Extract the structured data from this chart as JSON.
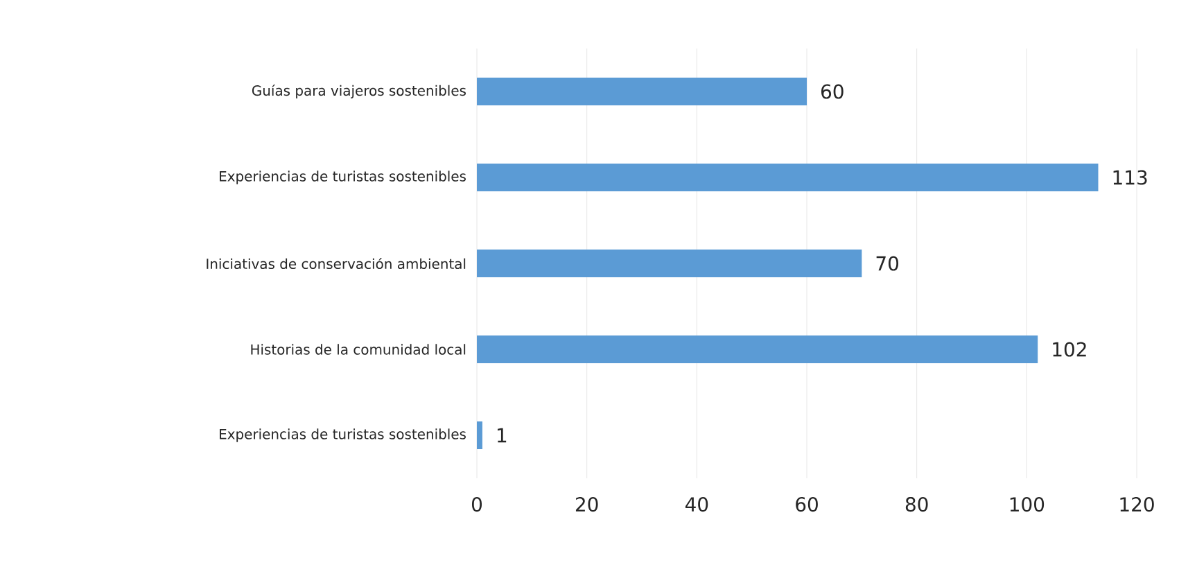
{
  "chart_data": {
    "type": "bar",
    "orientation": "horizontal",
    "categories": [
      "Guías para viajeros sostenibles",
      "Experiencias de turistas sostenibles",
      "Iniciativas de conservación ambiental",
      "Historias de la comunidad local",
      "Experiencias de turistas sostenibles"
    ],
    "values": [
      60,
      113,
      70,
      102,
      1
    ],
    "color": "#5b9bd5",
    "xlim": [
      0,
      120
    ],
    "xticks": [
      0,
      20,
      40,
      60,
      80,
      100,
      120
    ],
    "grid": "x",
    "data_labels": true
  }
}
